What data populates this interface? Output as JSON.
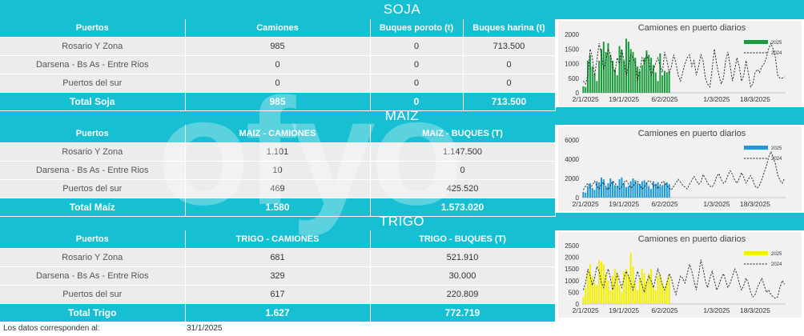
{
  "watermark": "ofyo",
  "footer": {
    "label": "Los datos corresponden al:",
    "date": "31/1/2025"
  },
  "sections": [
    {
      "title": "SOJA",
      "headers": [
        "Puertos",
        "Camiones",
        "Buques poroto (t)",
        "Buques harina (t)"
      ],
      "rows": [
        [
          "Rosario Y Zona",
          "985",
          "0",
          "713.500"
        ],
        [
          "Darsena - Bs As - Entre Rios",
          "0",
          "0",
          "0"
        ],
        [
          "Puertos del sur",
          "0",
          "0",
          "0"
        ]
      ],
      "total": [
        "Total Soja",
        "985",
        "0",
        "713.500"
      ]
    },
    {
      "title": "MAIZ",
      "headers": [
        "Puertos",
        "MAIZ - CAMIONES",
        "MAIZ - BUQUES (T)"
      ],
      "rows": [
        [
          "Rosario Y Zona",
          "1.101",
          "1.147.500"
        ],
        [
          "Darsena - Bs As - Entre Rios",
          "10",
          "0"
        ],
        [
          "Puertos del sur",
          "469",
          "425.520"
        ]
      ],
      "total": [
        "Total Maíz",
        "1.580",
        "1.573.020"
      ]
    },
    {
      "title": "TRIGO",
      "headers": [
        "Puertos",
        "TRIGO - CAMIONES",
        "TRIGO - BUQUES (T)"
      ],
      "rows": [
        [
          "Rosario Y Zona",
          "681",
          "521.910"
        ],
        [
          "Darsena - Bs As - Entre Rios",
          "329",
          "30.000"
        ],
        [
          "Puertos del sur",
          "617",
          "220.809"
        ]
      ],
      "total": [
        "Total Trigo",
        "1.627",
        "772.719"
      ]
    }
  ],
  "chart_data": [
    {
      "type": "bar",
      "title": "Camiones en puerto diarios",
      "bar_color": "#1a9b3c",
      "line_color": "#222222",
      "legend": [
        "2025",
        "2024"
      ],
      "ylim": [
        0,
        2000
      ],
      "yticks": [
        0,
        500,
        1000,
        1500,
        2000
      ],
      "xticks": [
        "2/1/2025",
        "19/1/2025",
        "6/2/2025",
        "1/3/2025",
        "18/3/2025"
      ],
      "xtick_days": [
        1,
        18,
        36,
        59,
        76
      ],
      "day_count": 90,
      "series": [
        {
          "name": "2025",
          "values": [
            220,
            200,
            1100,
            1300,
            900,
            650,
            400,
            1100,
            1500,
            1750,
            1400,
            1700,
            1300,
            1100,
            800,
            600,
            1600,
            1450,
            1100,
            1850,
            1750,
            1500,
            1400,
            1200,
            900,
            750,
            950,
            1200,
            1450,
            1300,
            1200,
            950,
            700,
            400,
            1350,
            600,
            750,
            700,
            750
          ]
        },
        {
          "name": "2024",
          "values": [
            400,
            300,
            600,
            1500,
            1200,
            600,
            1100,
            1700,
            1300,
            800,
            1100,
            1500,
            1300,
            900,
            700,
            1200,
            1000,
            1500,
            1100,
            600,
            900,
            1300,
            1200,
            1000,
            400,
            800,
            1200,
            1000,
            1300,
            1100,
            600,
            800,
            1000,
            1200,
            900,
            700,
            1400,
            1100,
            700,
            900,
            1300,
            1000,
            600,
            400,
            700,
            1000,
            1200,
            1300,
            900,
            1100,
            600,
            900,
            1300,
            1100,
            500,
            300,
            200,
            800,
            1500,
            1000,
            600,
            300,
            500,
            1100,
            1400,
            900,
            400,
            800,
            1200,
            900,
            400,
            600,
            1100,
            700,
            200,
            300,
            700,
            800,
            700,
            900,
            1000,
            1200,
            1500,
            1700,
            1500,
            1200,
            600,
            500,
            500,
            550
          ]
        }
      ]
    },
    {
      "type": "bar",
      "title": "Camiones en puerto diarios",
      "bar_color": "#1a9bd7",
      "line_color": "#222222",
      "legend": [
        "2025",
        "2024"
      ],
      "ylim": [
        0,
        6000
      ],
      "yticks": [
        0,
        2000,
        4000,
        6000
      ],
      "xticks": [
        "2/1/2025",
        "19/1/2025",
        "6/2/2025",
        "1/3/2025",
        "18/3/2025"
      ],
      "xtick_days": [
        1,
        18,
        36,
        59,
        76
      ],
      "day_count": 90,
      "series": [
        {
          "name": "2025",
          "values": [
            600,
            500,
            1200,
            1500,
            1000,
            800,
            1700,
            1600,
            2100,
            1900,
            1100,
            1500,
            2000,
            1700,
            1300,
            1200,
            1900,
            2100,
            1500,
            1100,
            1200,
            1700,
            2000,
            1800,
            1500,
            1400,
            1700,
            1800,
            1600,
            1200,
            900,
            1700,
            1400,
            1600,
            1200,
            1300,
            1500,
            1600,
            1400
          ]
        },
        {
          "name": "2024",
          "values": [
            800,
            1200,
            1500,
            1000,
            1300,
            1700,
            1200,
            900,
            1400,
            1600,
            1100,
            800,
            1300,
            1700,
            1500,
            1200,
            900,
            1100,
            1600,
            1800,
            1400,
            1000,
            1200,
            1500,
            1700,
            1300,
            900,
            1100,
            1500,
            1800,
            1600,
            1200,
            1400,
            900,
            1300,
            1700,
            1600,
            1200,
            1000,
            800,
            1200,
            1500,
            1900,
            1600,
            1300,
            1100,
            900,
            1400,
            1800,
            2200,
            1800,
            1400,
            1600,
            2400,
            2000,
            1500,
            1200,
            1100,
            1500,
            2200,
            2500,
            1900,
            1500,
            1700,
            2300,
            2800,
            2400,
            1800,
            1500,
            2000,
            2600,
            2100,
            1500,
            1900,
            2300,
            1800,
            1200,
            1000,
            1300,
            1900,
            2600,
            3300,
            4200,
            4800,
            4200,
            3500,
            2400,
            1800,
            1500,
            2000
          ]
        }
      ]
    },
    {
      "type": "bar",
      "title": "Camiones en puerto diarios",
      "bar_color": "#f2ef00",
      "line_color": "#222222",
      "legend": [
        "2025",
        "2024"
      ],
      "ylim": [
        0,
        2500
      ],
      "yticks": [
        0,
        500,
        1000,
        1500,
        2000,
        2500
      ],
      "xticks": [
        "2/1/2025",
        "19/1/2025",
        "6/2/2025",
        "1/3/2025",
        "18/3/2025"
      ],
      "xtick_days": [
        1,
        18,
        36,
        59,
        76
      ],
      "day_count": 90,
      "series": [
        {
          "name": "2025",
          "values": [
            300,
            700,
            1400,
            1700,
            1200,
            900,
            800,
            1900,
            1800,
            1700,
            1300,
            1000,
            600,
            1200,
            1500,
            1300,
            800,
            500,
            1400,
            1500,
            1200,
            2200,
            1600,
            900,
            600,
            1100,
            1500,
            1300,
            1000,
            1300,
            1500,
            800,
            600,
            1200,
            1300,
            900,
            700,
            1000,
            1200
          ]
        },
        {
          "name": "2024",
          "values": [
            600,
            900,
            1500,
            1200,
            800,
            1100,
            1600,
            1400,
            900,
            700,
            1200,
            1500,
            1100,
            600,
            900,
            1300,
            1000,
            700,
            1100,
            1400,
            1200,
            900,
            600,
            1000,
            1400,
            1100,
            800,
            500,
            900,
            1200,
            1000,
            700,
            1100,
            1500,
            1200,
            800,
            600,
            900,
            1300,
            1100,
            700,
            400,
            800,
            1200,
            1100,
            900,
            1300,
            1700,
            1400,
            1000,
            600,
            1200,
            1900,
            1500,
            1000,
            700,
            1100,
            1400,
            1000,
            600,
            800,
            1100,
            1300,
            1000,
            700,
            900,
            1200,
            1500,
            1300,
            900,
            600,
            800,
            1100,
            900,
            500,
            300,
            400,
            700,
            900,
            1100,
            800,
            500,
            600,
            400,
            300,
            250,
            300,
            700,
            1000,
            850
          ]
        }
      ]
    }
  ]
}
